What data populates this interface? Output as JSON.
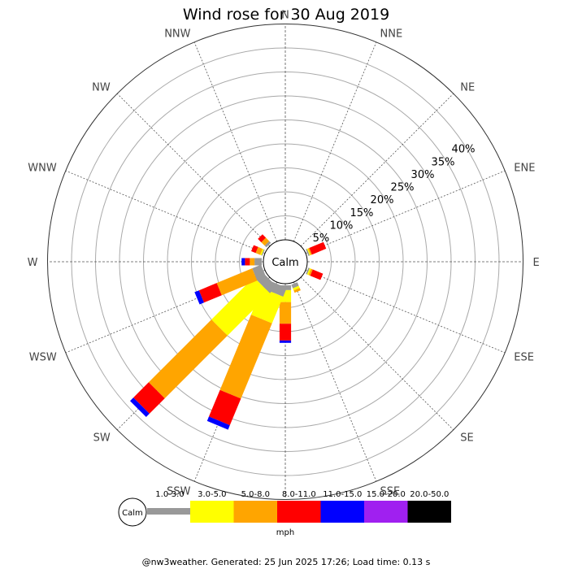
{
  "chart_data": {
    "type": "wind-rose",
    "title": "Wind rose for 30 Aug 2019",
    "direction_labels": [
      "N",
      "NNE",
      "NE",
      "ENE",
      "E",
      "ESE",
      "SE",
      "SSE",
      "S",
      "SSW",
      "SW",
      "WSW",
      "W",
      "WNW",
      "NW",
      "NNW"
    ],
    "radial_tick_labels": [
      "5%",
      "10%",
      "15%",
      "20%",
      "25%",
      "30%",
      "35%",
      "40%"
    ],
    "radial_range_percent": [
      0,
      45
    ],
    "calm_label": "Calm",
    "speed_unit": "mph",
    "speed_bins": [
      {
        "label": "1.0-3.0",
        "color": "#999999"
      },
      {
        "label": "3.0-5.0",
        "color": "#ffff00"
      },
      {
        "label": "5.0-8.0",
        "color": "#ffa500"
      },
      {
        "label": "8.0-11.0",
        "color": "#ff0000"
      },
      {
        "label": "11.0-15.0",
        "color": "#0000ff"
      },
      {
        "label": "15.0-20.0",
        "color": "#a020f0"
      },
      {
        "label": "20.0-50.0",
        "color": "#000000"
      }
    ],
    "cumulative_percent_by_direction": {
      "ENE": [
        0.3,
        0.5,
        0.8,
        4.0,
        4.0,
        4.0,
        4.0
      ],
      "ESE": [
        0.3,
        0.6,
        1.0,
        3.3,
        3.3,
        3.3,
        3.3
      ],
      "SSE": [
        0.8,
        1.3,
        1.8,
        1.8,
        1.8,
        1.8,
        1.8
      ],
      "S": [
        1.0,
        3.5,
        8.0,
        11.5,
        12.0,
        12.0,
        12.0
      ],
      "SSW": [
        2.0,
        8.0,
        25.0,
        31.0,
        32.0,
        32.0,
        32.0
      ],
      "SW": [
        2.0,
        14.5,
        33.0,
        37.5,
        38.5,
        38.5,
        38.5
      ],
      "WSW": [
        2.0,
        2.0,
        10.0,
        14.0,
        15.0,
        15.0,
        15.0
      ],
      "W": [
        1.5,
        1.5,
        2.5,
        3.5,
        4.2,
        4.2,
        4.2
      ],
      "WNW": [
        0.2,
        0.5,
        1.5,
        2.5,
        2.5,
        2.5,
        2.5
      ],
      "NW": [
        0.5,
        0.5,
        1.5,
        2.5,
        2.5,
        2.5,
        2.5
      ]
    }
  },
  "footer": "@nw3weather. Generated: 25 Jun 2025 17:26; Load time: 0.13 s"
}
